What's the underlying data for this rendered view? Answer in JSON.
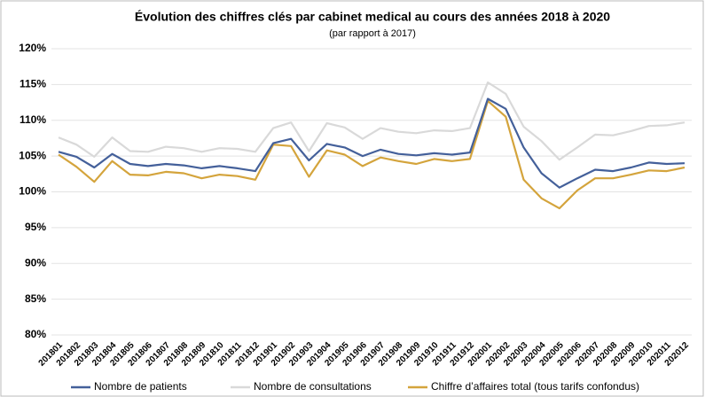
{
  "chart_data": {
    "type": "line",
    "title": "Évolution des chiffres clés par cabinet medical au cours des années 2018 à 2020",
    "subtitle": "(par rapport à 2017)",
    "categories": [
      "201801",
      "201802",
      "201803",
      "201804",
      "201805",
      "201806",
      "201807",
      "201808",
      "201809",
      "201810",
      "201811",
      "201812",
      "201901",
      "201902",
      "201903",
      "201904",
      "201905",
      "201906",
      "201907",
      "201908",
      "201909",
      "201910",
      "201911",
      "201912",
      "202001",
      "202002",
      "202003",
      "202004",
      "202005",
      "202006",
      "202007",
      "202008",
      "202009",
      "202010",
      "202011",
      "202012"
    ],
    "series": [
      {
        "name": "Nombre de patients",
        "color": "#44609a",
        "values": [
          105.6,
          104.9,
          103.4,
          105.3,
          103.9,
          103.6,
          103.9,
          103.7,
          103.3,
          103.6,
          103.3,
          102.9,
          106.8,
          107.4,
          104.4,
          106.7,
          106.2,
          105.0,
          105.9,
          105.3,
          105.1,
          105.4,
          105.2,
          105.5,
          113.0,
          111.6,
          106.2,
          102.6,
          100.6,
          101.9,
          103.1,
          102.9,
          103.4,
          104.1,
          103.9,
          104.0
        ]
      },
      {
        "name": "Nombre de consultations",
        "color": "#d9d9d9",
        "values": [
          107.6,
          106.6,
          104.9,
          107.6,
          105.7,
          105.6,
          106.3,
          106.1,
          105.6,
          106.1,
          106.0,
          105.6,
          108.9,
          109.7,
          105.7,
          109.6,
          109.0,
          107.4,
          108.9,
          108.4,
          108.2,
          108.6,
          108.5,
          108.9,
          115.3,
          113.7,
          109.1,
          107.1,
          104.5,
          106.2,
          108.0,
          107.9,
          108.5,
          109.2,
          109.3,
          109.7
        ]
      },
      {
        "name": "Chiffre d’affaires total (tous tarifs confondus)",
        "color": "#d4a43c",
        "values": [
          105.2,
          103.5,
          101.4,
          104.3,
          102.4,
          102.3,
          102.8,
          102.6,
          101.9,
          102.4,
          102.2,
          101.7,
          106.6,
          106.4,
          102.1,
          105.8,
          105.2,
          103.6,
          104.8,
          104.3,
          103.9,
          104.6,
          104.3,
          104.6,
          112.7,
          110.5,
          101.7,
          99.1,
          97.7,
          100.2,
          101.9,
          101.9,
          102.4,
          103.0,
          102.9,
          103.4
        ]
      }
    ],
    "ylim": [
      80,
      120
    ],
    "yticks": [
      {
        "value": 80,
        "label": "80%"
      },
      {
        "value": 85,
        "label": "85%"
      },
      {
        "value": 90,
        "label": "90%"
      },
      {
        "value": 95,
        "label": "95%"
      },
      {
        "value": 100,
        "label": "100%"
      },
      {
        "value": 105,
        "label": "105%"
      },
      {
        "value": 110,
        "label": "110%"
      },
      {
        "value": 115,
        "label": "115%"
      },
      {
        "value": 120,
        "label": "120%"
      }
    ],
    "grid": true
  }
}
